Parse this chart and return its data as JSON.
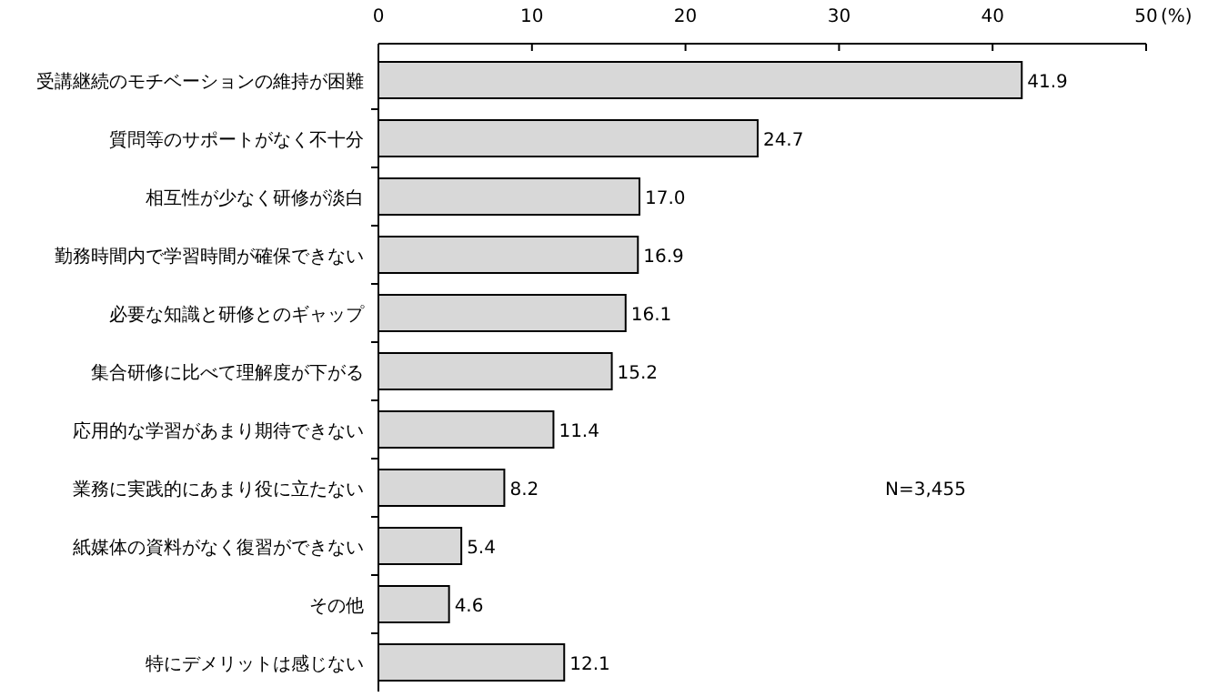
{
  "chart_data": {
    "type": "bar",
    "orientation": "horizontal",
    "xlabel": "(%)",
    "categories": [
      "受講継続のモチベーションの維持が困難",
      "質問等のサポートがなく不十分",
      "相互性が少なく研修が淡白",
      "勤務時間内で学習時間が確保できない",
      "必要な知識と研修とのギャップ",
      "集合研修に比べて理解度が下がる",
      "応用的な学習があまり期待できない",
      "業務に実践的にあまり役に立たない",
      "紙媒体の資料がなく復習ができない",
      "その他",
      "特にデメリットは感じない"
    ],
    "values": [
      41.9,
      24.7,
      17.0,
      16.9,
      16.1,
      15.2,
      11.4,
      8.2,
      5.4,
      4.6,
      12.1
    ],
    "value_labels": [
      "41.9",
      "24.7",
      "17.0",
      "16.9",
      "16.1",
      "15.2",
      "11.4",
      "8.2",
      "5.4",
      "4.6",
      "12.1"
    ],
    "color": "#d8d8d8",
    "xlim": [
      0,
      50
    ],
    "xticks": [
      0,
      10,
      20,
      30,
      40,
      50
    ],
    "grid": false,
    "annotations": [
      "N=3,455"
    ]
  }
}
